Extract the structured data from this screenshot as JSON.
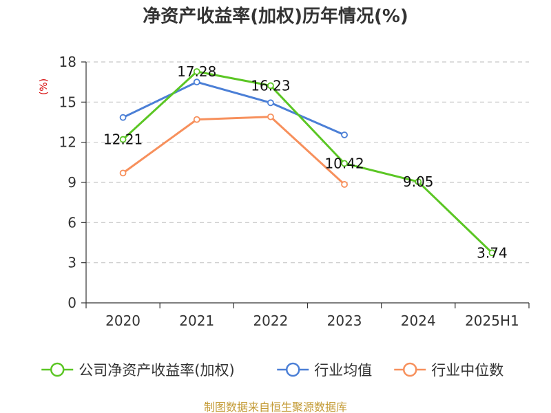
{
  "chart_data": {
    "type": "line",
    "title": "净资产收益率(加权)历年情况(%)",
    "ylabel": "(%)",
    "categories": [
      "2020",
      "2021",
      "2022",
      "2023",
      "2024",
      "2025H1"
    ],
    "ylim": [
      0,
      18
    ],
    "yticks": [
      "0",
      "3",
      "6",
      "9",
      "12",
      "15",
      "18"
    ],
    "grid": true,
    "legend_position": "bottom",
    "series": [
      {
        "name": "公司净资产收益率(加权)",
        "color": "#5bc624",
        "values": [
          12.21,
          17.28,
          16.23,
          10.42,
          9.05,
          3.74
        ],
        "labels": [
          "12.21",
          "17.28",
          "16.23",
          "10.42",
          "9.05",
          "3.74"
        ]
      },
      {
        "name": "行业均值",
        "color": "#4b7fd6",
        "values": [
          13.85,
          16.5,
          14.95,
          12.55,
          null,
          null
        ]
      },
      {
        "name": "行业中位数",
        "color": "#f7905c",
        "values": [
          9.7,
          13.7,
          13.9,
          8.85,
          null,
          null
        ]
      }
    ]
  },
  "source_text": "制图数据来自恒生聚源数据库"
}
